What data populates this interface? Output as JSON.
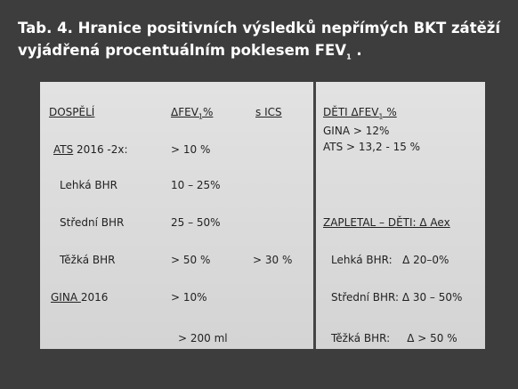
{
  "title": {
    "line1": "Tab. 4. Hranice positivních výsledků nepřímých BKT zátěží",
    "line2": "vyjádřená procentuálním poklesem FEV",
    "line2_sub": "1",
    "line2_end": " ."
  },
  "table": {
    "adults": {
      "header": "DOSPĚLÍ",
      "delta_header": "ΔFEV",
      "delta_sub": "1",
      "delta_unit": "%",
      "ics_header": "s ICS",
      "ats_underlined": "ATS",
      "ats_rest": " 2016 -2x:",
      "ats_value": "> 10 %",
      "mild": "Lehká BHR",
      "mild_value": "10 – 25%",
      "moderate": "Střední BHR",
      "moderate_value": "25 – 50%",
      "severe": "Těžká BHR",
      "severe_value": "> 50 %",
      "severe_ics": "> 30 %",
      "gina_underlined": "GINA ",
      "gina_rest": "2016",
      "gina_value": "> 10%",
      "volume_value": "> 200 ml"
    },
    "children": {
      "header": "DĚTI ΔFEV",
      "header_sub": "1",
      "header_unit": " %",
      "gina": "GINA > 12%",
      "ats": "ATS > 13,2 - 15 %",
      "zapletal_header": "ZAPLETAL – DĚTI: Δ Aex",
      "mild": "Lehká BHR:   Δ 20–0%",
      "moderate": "Střední BHR: Δ 30 – 50%",
      "severe": "Těžká BHR:     Δ > 50 %"
    }
  }
}
